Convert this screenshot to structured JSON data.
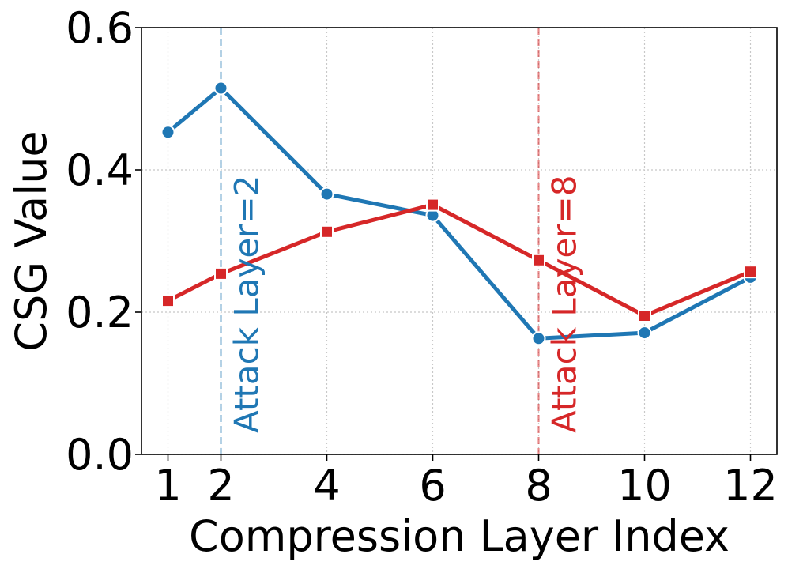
{
  "chart_data": {
    "type": "line",
    "xlabel": "Compression Layer Index",
    "ylabel": "CSG Value",
    "xlim": [
      0.5,
      12.5
    ],
    "ylim": [
      0.0,
      0.6
    ],
    "xticks": [
      1,
      2,
      4,
      6,
      8,
      10,
      12
    ],
    "xtick_labels": [
      "1",
      "2",
      "4",
      "6",
      "8",
      "10",
      "12"
    ],
    "yticks": [
      0.0,
      0.2,
      0.4,
      0.6
    ],
    "ytick_labels": [
      "0.0",
      "0.2",
      "0.4",
      "0.6"
    ],
    "grid": true,
    "series": [
      {
        "color": "#1f77b4",
        "marker": "circle",
        "x": [
          1,
          2,
          4,
          6,
          8,
          10,
          12
        ],
        "values": [
          0.453,
          0.515,
          0.366,
          0.336,
          0.163,
          0.171,
          0.249
        ]
      },
      {
        "color": "#d62728",
        "marker": "square",
        "x": [
          1,
          2,
          4,
          6,
          8,
          10,
          12
        ],
        "values": [
          0.216,
          0.254,
          0.313,
          0.351,
          0.273,
          0.195,
          0.257
        ]
      }
    ],
    "annotations": [
      {
        "text": "Attack Layer=2",
        "x": 2,
        "color": "#1f77b4"
      },
      {
        "text": "Attack Layer=8",
        "x": 8,
        "color": "#d62728"
      }
    ]
  }
}
